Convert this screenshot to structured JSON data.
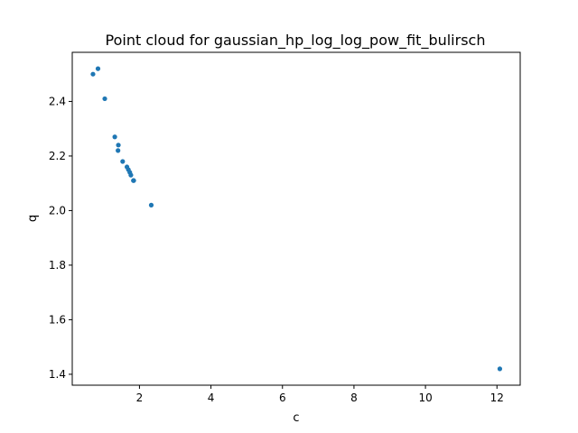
{
  "chart_data": {
    "type": "scatter",
    "title": "Point cloud for gaussian_hp_log_log_pow_fit_bulirsch",
    "xlabel": "c",
    "ylabel": "q",
    "xlim": [
      0.12,
      12.65
    ],
    "ylim": [
      1.36,
      2.58
    ],
    "xticks": [
      2,
      4,
      6,
      8,
      10,
      12
    ],
    "yticks": [
      1.4,
      1.6,
      1.8,
      2.0,
      2.2,
      2.4
    ],
    "grid": false,
    "color": "#1f77b4",
    "series": [
      {
        "x": [
          0.7,
          0.84,
          1.03,
          1.31,
          1.41,
          1.4,
          1.53,
          1.65,
          1.69,
          1.73,
          1.76,
          1.83,
          1.84,
          2.33,
          12.08
        ],
        "y": [
          2.5,
          2.52,
          2.41,
          2.27,
          2.24,
          2.22,
          2.18,
          2.16,
          2.15,
          2.14,
          2.13,
          2.11,
          2.11,
          2.02,
          1.42
        ]
      }
    ]
  }
}
